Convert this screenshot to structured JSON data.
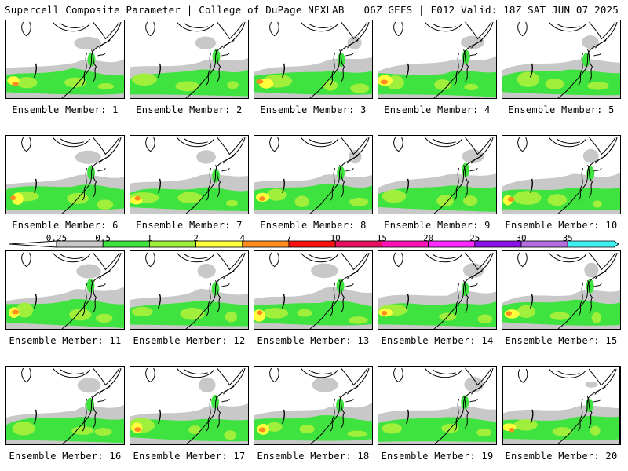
{
  "header": {
    "title_left": "Supercell Composite Parameter | College of DuPage NEXLAB",
    "title_right": "06Z GEFS | F012 Valid: 18Z SAT JUN 07 2025"
  },
  "legend": {
    "bins": [
      {
        "label": "0.25",
        "color": "#c8c8c8"
      },
      {
        "label": "0.5",
        "color": "#3fe33f"
      },
      {
        "label": "1",
        "color": "#a0ef3b"
      },
      {
        "label": "2",
        "color": "#ffff3c"
      },
      {
        "label": "4",
        "color": "#ff8c1e"
      },
      {
        "label": "7",
        "color": "#ff1010"
      },
      {
        "label": "10",
        "color": "#e81060"
      },
      {
        "label": "15",
        "color": "#ff10b8"
      },
      {
        "label": "20",
        "color": "#ff28ff"
      },
      {
        "label": "25",
        "color": "#8c10e8"
      },
      {
        "label": "30",
        "color": "#b46ee0"
      },
      {
        "label": "35",
        "color": "#40f0f0"
      }
    ]
  },
  "members": [
    {
      "label": "Ensemble Member: 1"
    },
    {
      "label": "Ensemble Member: 2"
    },
    {
      "label": "Ensemble Member: 3"
    },
    {
      "label": "Ensemble Member: 4"
    },
    {
      "label": "Ensemble Member: 5"
    },
    {
      "label": "Ensemble Member: 6"
    },
    {
      "label": "Ensemble Member: 7"
    },
    {
      "label": "Ensemble Member: 8"
    },
    {
      "label": "Ensemble Member: 9"
    },
    {
      "label": "Ensemble Member: 10"
    },
    {
      "label": "Ensemble Member: 11"
    },
    {
      "label": "Ensemble Member: 12"
    },
    {
      "label": "Ensemble Member: 13"
    },
    {
      "label": "Ensemble Member: 14"
    },
    {
      "label": "Ensemble Member: 15"
    },
    {
      "label": "Ensemble Member: 16"
    },
    {
      "label": "Ensemble Member: 17"
    },
    {
      "label": "Ensemble Member: 18"
    },
    {
      "label": "Ensemble Member: 19"
    },
    {
      "label": "Ensemble Member: 20"
    }
  ]
}
